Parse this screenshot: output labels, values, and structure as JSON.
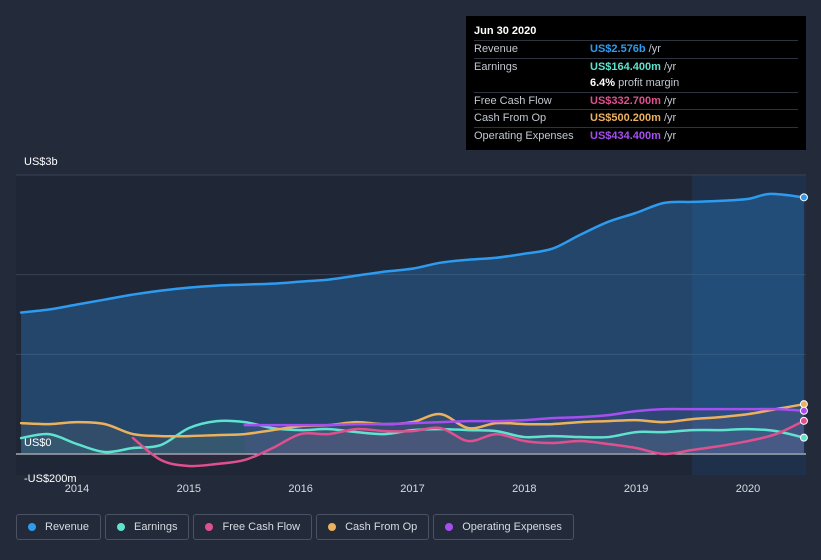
{
  "tooltip": {
    "date": "Jun 30 2020",
    "rows": [
      {
        "name": "Revenue",
        "value": "US$2.576b",
        "unit": "/yr",
        "color": "#2d9cf0"
      },
      {
        "name": "Earnings",
        "value": "US$164.400m",
        "unit": "/yr",
        "color": "#5fe3cf"
      },
      {
        "name": "Free Cash Flow",
        "value": "US$332.700m",
        "unit": "/yr",
        "color": "#e0508f"
      },
      {
        "name": "Cash From Op",
        "value": "US$500.200m",
        "unit": "/yr",
        "color": "#ecb15d"
      },
      {
        "name": "Operating Expenses",
        "value": "US$434.400m",
        "unit": "/yr",
        "color": "#a64ef0"
      }
    ],
    "margin_value": "6.4%",
    "margin_label": "profit margin"
  },
  "legend": [
    {
      "label": "Revenue",
      "color": "#2d9cf0"
    },
    {
      "label": "Earnings",
      "color": "#5fe3cf"
    },
    {
      "label": "Free Cash Flow",
      "color": "#e0508f"
    },
    {
      "label": "Cash From Op",
      "color": "#ecb15d"
    },
    {
      "label": "Operating Expenses",
      "color": "#a64ef0"
    }
  ],
  "chart_data": {
    "type": "line",
    "y_unit": "US$ m",
    "ylim": [
      -200,
      2800
    ],
    "xlim": [
      2013.25,
      2020.5
    ],
    "forecast_start": 2019.5,
    "y_tick_labels": [
      {
        "value": 2800,
        "label": "US$3b"
      },
      {
        "value": 0,
        "label": "US$0"
      },
      {
        "value": -200,
        "label": "-US$200m"
      }
    ],
    "x_tick_labels": [
      "2014",
      "2015",
      "2016",
      "2017",
      "2018",
      "2019",
      "2020"
    ],
    "x_ticks": [
      2014,
      2015,
      2016,
      2017,
      2018,
      2019,
      2020
    ],
    "series": [
      {
        "name": "Revenue",
        "color": "#2d9cf0",
        "fill": true,
        "points": [
          [
            2013.5,
            1420
          ],
          [
            2013.75,
            1450
          ],
          [
            2014.0,
            1500
          ],
          [
            2014.25,
            1550
          ],
          [
            2014.5,
            1600
          ],
          [
            2014.75,
            1640
          ],
          [
            2015.0,
            1670
          ],
          [
            2015.25,
            1690
          ],
          [
            2015.5,
            1700
          ],
          [
            2015.75,
            1710
          ],
          [
            2016.0,
            1730
          ],
          [
            2016.25,
            1750
          ],
          [
            2016.5,
            1790
          ],
          [
            2016.75,
            1830
          ],
          [
            2017.0,
            1860
          ],
          [
            2017.25,
            1920
          ],
          [
            2017.5,
            1950
          ],
          [
            2017.75,
            1970
          ],
          [
            2018.0,
            2010
          ],
          [
            2018.25,
            2060
          ],
          [
            2018.5,
            2200
          ],
          [
            2018.75,
            2330
          ],
          [
            2019.0,
            2420
          ],
          [
            2019.25,
            2520
          ],
          [
            2019.5,
            2530
          ],
          [
            2019.75,
            2540
          ],
          [
            2020.0,
            2560
          ],
          [
            2020.2,
            2610
          ],
          [
            2020.5,
            2576
          ]
        ]
      },
      {
        "name": "Earnings",
        "color": "#5fe3cf",
        "fill": false,
        "points": [
          [
            2013.5,
            160
          ],
          [
            2013.75,
            200
          ],
          [
            2014.0,
            100
          ],
          [
            2014.25,
            20
          ],
          [
            2014.5,
            60
          ],
          [
            2014.75,
            90
          ],
          [
            2015.0,
            260
          ],
          [
            2015.25,
            330
          ],
          [
            2015.5,
            320
          ],
          [
            2015.75,
            260
          ],
          [
            2016.0,
            240
          ],
          [
            2016.25,
            250
          ],
          [
            2016.5,
            220
          ],
          [
            2016.75,
            200
          ],
          [
            2017.0,
            240
          ],
          [
            2017.25,
            250
          ],
          [
            2017.5,
            240
          ],
          [
            2017.75,
            230
          ],
          [
            2018.0,
            170
          ],
          [
            2018.25,
            180
          ],
          [
            2018.5,
            170
          ],
          [
            2018.75,
            170
          ],
          [
            2019.0,
            220
          ],
          [
            2019.25,
            220
          ],
          [
            2019.5,
            240
          ],
          [
            2019.75,
            240
          ],
          [
            2020.0,
            250
          ],
          [
            2020.25,
            230
          ],
          [
            2020.5,
            164
          ]
        ]
      },
      {
        "name": "Free Cash Flow",
        "color": "#e0508f",
        "fill": false,
        "points": [
          [
            2014.5,
            160
          ],
          [
            2014.75,
            -60
          ],
          [
            2015.0,
            -120
          ],
          [
            2015.25,
            -100
          ],
          [
            2015.5,
            -60
          ],
          [
            2015.75,
            60
          ],
          [
            2016.0,
            200
          ],
          [
            2016.25,
            200
          ],
          [
            2016.5,
            250
          ],
          [
            2016.75,
            230
          ],
          [
            2017.0,
            230
          ],
          [
            2017.25,
            260
          ],
          [
            2017.5,
            130
          ],
          [
            2017.75,
            200
          ],
          [
            2018.0,
            130
          ],
          [
            2018.25,
            110
          ],
          [
            2018.5,
            130
          ],
          [
            2018.75,
            100
          ],
          [
            2019.0,
            60
          ],
          [
            2019.25,
            0
          ],
          [
            2019.5,
            40
          ],
          [
            2019.75,
            80
          ],
          [
            2020.0,
            130
          ],
          [
            2020.25,
            200
          ],
          [
            2020.5,
            333
          ]
        ]
      },
      {
        "name": "Cash From Op",
        "color": "#ecb15d",
        "fill": false,
        "points": [
          [
            2013.5,
            310
          ],
          [
            2013.75,
            300
          ],
          [
            2014.0,
            320
          ],
          [
            2014.25,
            300
          ],
          [
            2014.5,
            200
          ],
          [
            2014.75,
            180
          ],
          [
            2015.0,
            180
          ],
          [
            2015.25,
            190
          ],
          [
            2015.5,
            200
          ],
          [
            2015.75,
            240
          ],
          [
            2016.0,
            280
          ],
          [
            2016.25,
            290
          ],
          [
            2016.5,
            320
          ],
          [
            2016.75,
            300
          ],
          [
            2017.0,
            320
          ],
          [
            2017.25,
            400
          ],
          [
            2017.5,
            260
          ],
          [
            2017.75,
            310
          ],
          [
            2018.0,
            300
          ],
          [
            2018.25,
            300
          ],
          [
            2018.5,
            320
          ],
          [
            2018.75,
            330
          ],
          [
            2019.0,
            340
          ],
          [
            2019.25,
            320
          ],
          [
            2019.5,
            350
          ],
          [
            2019.75,
            370
          ],
          [
            2020.0,
            400
          ],
          [
            2020.25,
            450
          ],
          [
            2020.5,
            500
          ]
        ]
      },
      {
        "name": "Operating Expenses",
        "color": "#a64ef0",
        "fill": false,
        "points": [
          [
            2015.5,
            290
          ],
          [
            2015.75,
            290
          ],
          [
            2016.0,
            290
          ],
          [
            2016.25,
            290
          ],
          [
            2016.5,
            300
          ],
          [
            2016.75,
            300
          ],
          [
            2017.0,
            310
          ],
          [
            2017.25,
            320
          ],
          [
            2017.5,
            330
          ],
          [
            2017.75,
            330
          ],
          [
            2018.0,
            340
          ],
          [
            2018.25,
            360
          ],
          [
            2018.5,
            370
          ],
          [
            2018.75,
            390
          ],
          [
            2019.0,
            430
          ],
          [
            2019.25,
            450
          ],
          [
            2019.5,
            450
          ],
          [
            2019.75,
            450
          ],
          [
            2020.0,
            450
          ],
          [
            2020.25,
            450
          ],
          [
            2020.5,
            434
          ]
        ]
      }
    ]
  }
}
